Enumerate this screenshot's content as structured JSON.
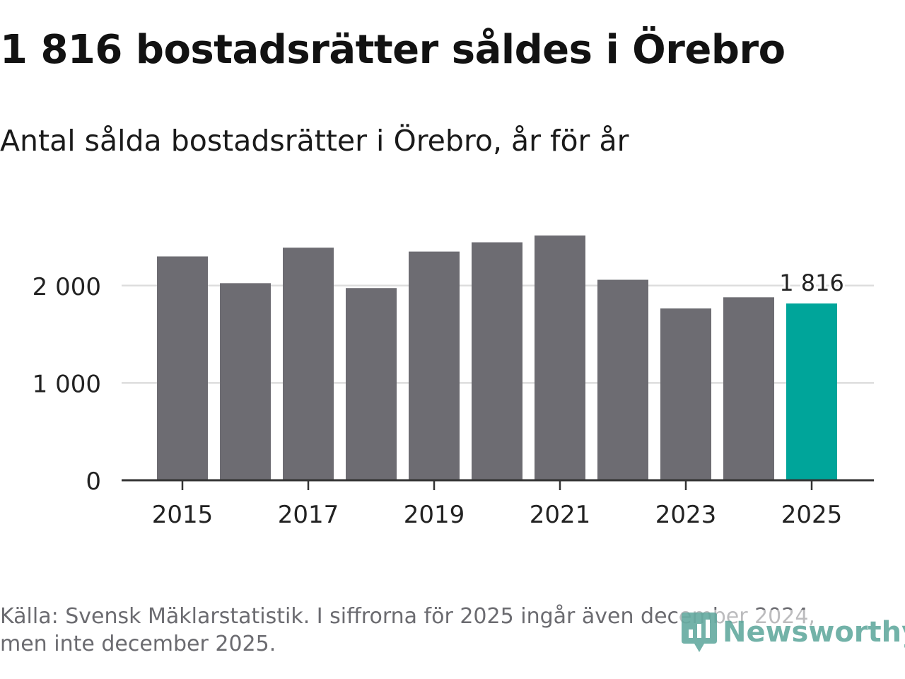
{
  "title": "1 816 bostadsrätter såldes i Örebro",
  "subtitle": "Antal sålda bostadsrätter i Örebro, år för år",
  "source": "Källa: Svensk Mäklarstatistik. I siffrorna för 2025 ingår även december 2024, men inte december 2025.",
  "brand": {
    "name": "Newsworthy",
    "icon": "newsworthy-logo-icon",
    "color": "#5aa59a"
  },
  "colors": {
    "bar": "#6d6c72",
    "highlight": "#00a59a",
    "grid": "#dddddd",
    "axis": "#333333",
    "text": "#222222"
  },
  "chart_data": {
    "type": "bar",
    "categories": [
      "2015",
      "2016",
      "2017",
      "2018",
      "2019",
      "2020",
      "2021",
      "2022",
      "2023",
      "2024",
      "2025"
    ],
    "values": [
      2300,
      2025,
      2390,
      1975,
      2350,
      2445,
      2515,
      2060,
      1765,
      1880,
      1816
    ],
    "highlight_index": 10,
    "data_labels": [
      {
        "index": 10,
        "text": "1 816"
      }
    ],
    "x_tick_labels": [
      "2015",
      "2017",
      "2019",
      "2021",
      "2023",
      "2025"
    ],
    "y_ticks": [
      0,
      1000,
      2000
    ],
    "y_tick_labels": [
      "0",
      "1 000",
      "2 000"
    ],
    "ylim": [
      0,
      2750
    ],
    "title": "Antal sålda bostadsrätter i Örebro, år för år",
    "xlabel": "",
    "ylabel": "",
    "grid": true
  }
}
